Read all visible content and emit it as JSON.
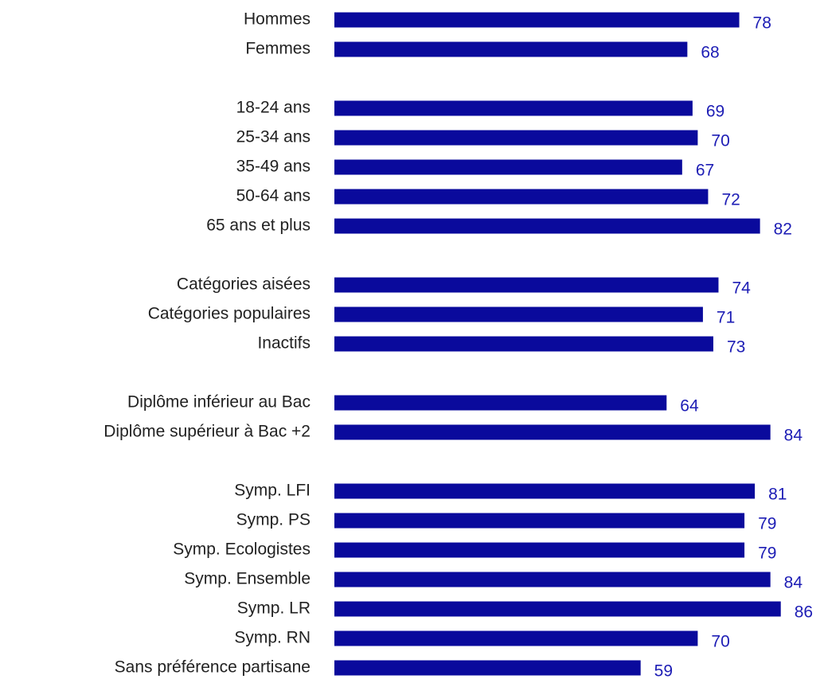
{
  "chart_data": {
    "type": "bar",
    "orientation": "horizontal",
    "color": "#0a0a9c",
    "categories": [
      "Hommes",
      "Femmes",
      null,
      "18-24 ans",
      "25-34 ans",
      "35-49 ans",
      "50-64 ans",
      "65 ans et plus",
      null,
      "Catégories aisées",
      "Catégories populaires",
      "Inactifs",
      null,
      "Diplôme inférieur au Bac",
      "Diplôme supérieur à Bac +2",
      null,
      "Symp. LFI",
      "Symp. PS",
      "Symp. Ecologistes",
      "Symp. Ensemble",
      "Symp. LR",
      "Symp. RN",
      "Sans préférence partisane"
    ],
    "values": [
      78,
      68,
      null,
      69,
      70,
      67,
      72,
      82,
      null,
      74,
      71,
      73,
      null,
      64,
      84,
      null,
      81,
      79,
      79,
      84,
      86,
      70,
      59
    ]
  }
}
